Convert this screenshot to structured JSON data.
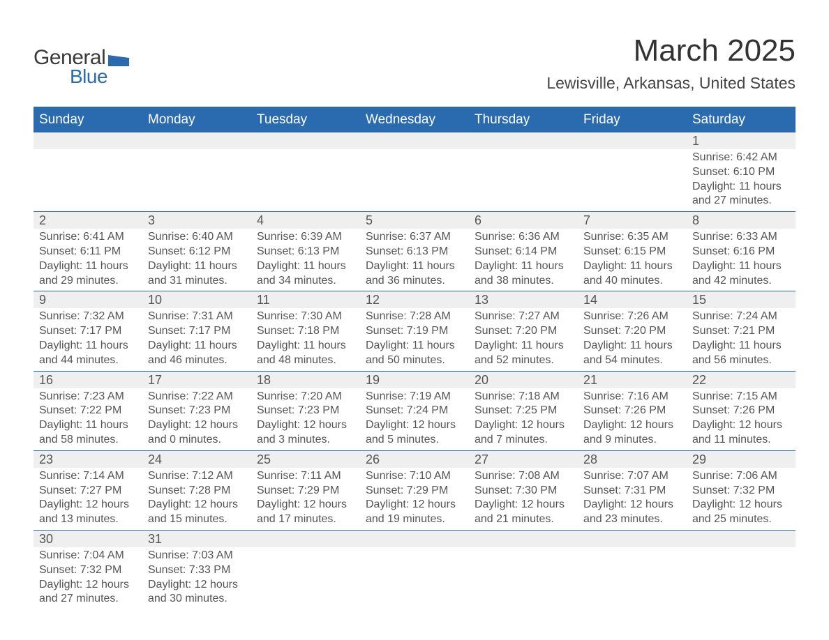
{
  "logo": {
    "text_general": "General",
    "text_blue": "Blue",
    "shape_color": "#2a6bb0"
  },
  "title": "March 2025",
  "location": "Lewisville, Arkansas, United States",
  "colors": {
    "header_bg": "#2a6bb0",
    "header_text": "#ffffff",
    "daynum_bg": "#efefef",
    "body_text": "#555555",
    "border": "#2a6bb0"
  },
  "day_headers": [
    "Sunday",
    "Monday",
    "Tuesday",
    "Wednesday",
    "Thursday",
    "Friday",
    "Saturday"
  ],
  "weeks": [
    [
      null,
      null,
      null,
      null,
      null,
      null,
      {
        "n": "1",
        "sunrise": "Sunrise: 6:42 AM",
        "sunset": "Sunset: 6:10 PM",
        "day1": "Daylight: 11 hours",
        "day2": "and 27 minutes."
      }
    ],
    [
      {
        "n": "2",
        "sunrise": "Sunrise: 6:41 AM",
        "sunset": "Sunset: 6:11 PM",
        "day1": "Daylight: 11 hours",
        "day2": "and 29 minutes."
      },
      {
        "n": "3",
        "sunrise": "Sunrise: 6:40 AM",
        "sunset": "Sunset: 6:12 PM",
        "day1": "Daylight: 11 hours",
        "day2": "and 31 minutes."
      },
      {
        "n": "4",
        "sunrise": "Sunrise: 6:39 AM",
        "sunset": "Sunset: 6:13 PM",
        "day1": "Daylight: 11 hours",
        "day2": "and 34 minutes."
      },
      {
        "n": "5",
        "sunrise": "Sunrise: 6:37 AM",
        "sunset": "Sunset: 6:13 PM",
        "day1": "Daylight: 11 hours",
        "day2": "and 36 minutes."
      },
      {
        "n": "6",
        "sunrise": "Sunrise: 6:36 AM",
        "sunset": "Sunset: 6:14 PM",
        "day1": "Daylight: 11 hours",
        "day2": "and 38 minutes."
      },
      {
        "n": "7",
        "sunrise": "Sunrise: 6:35 AM",
        "sunset": "Sunset: 6:15 PM",
        "day1": "Daylight: 11 hours",
        "day2": "and 40 minutes."
      },
      {
        "n": "8",
        "sunrise": "Sunrise: 6:33 AM",
        "sunset": "Sunset: 6:16 PM",
        "day1": "Daylight: 11 hours",
        "day2": "and 42 minutes."
      }
    ],
    [
      {
        "n": "9",
        "sunrise": "Sunrise: 7:32 AM",
        "sunset": "Sunset: 7:17 PM",
        "day1": "Daylight: 11 hours",
        "day2": "and 44 minutes."
      },
      {
        "n": "10",
        "sunrise": "Sunrise: 7:31 AM",
        "sunset": "Sunset: 7:17 PM",
        "day1": "Daylight: 11 hours",
        "day2": "and 46 minutes."
      },
      {
        "n": "11",
        "sunrise": "Sunrise: 7:30 AM",
        "sunset": "Sunset: 7:18 PM",
        "day1": "Daylight: 11 hours",
        "day2": "and 48 minutes."
      },
      {
        "n": "12",
        "sunrise": "Sunrise: 7:28 AM",
        "sunset": "Sunset: 7:19 PM",
        "day1": "Daylight: 11 hours",
        "day2": "and 50 minutes."
      },
      {
        "n": "13",
        "sunrise": "Sunrise: 7:27 AM",
        "sunset": "Sunset: 7:20 PM",
        "day1": "Daylight: 11 hours",
        "day2": "and 52 minutes."
      },
      {
        "n": "14",
        "sunrise": "Sunrise: 7:26 AM",
        "sunset": "Sunset: 7:20 PM",
        "day1": "Daylight: 11 hours",
        "day2": "and 54 minutes."
      },
      {
        "n": "15",
        "sunrise": "Sunrise: 7:24 AM",
        "sunset": "Sunset: 7:21 PM",
        "day1": "Daylight: 11 hours",
        "day2": "and 56 minutes."
      }
    ],
    [
      {
        "n": "16",
        "sunrise": "Sunrise: 7:23 AM",
        "sunset": "Sunset: 7:22 PM",
        "day1": "Daylight: 11 hours",
        "day2": "and 58 minutes."
      },
      {
        "n": "17",
        "sunrise": "Sunrise: 7:22 AM",
        "sunset": "Sunset: 7:23 PM",
        "day1": "Daylight: 12 hours",
        "day2": "and 0 minutes."
      },
      {
        "n": "18",
        "sunrise": "Sunrise: 7:20 AM",
        "sunset": "Sunset: 7:23 PM",
        "day1": "Daylight: 12 hours",
        "day2": "and 3 minutes."
      },
      {
        "n": "19",
        "sunrise": "Sunrise: 7:19 AM",
        "sunset": "Sunset: 7:24 PM",
        "day1": "Daylight: 12 hours",
        "day2": "and 5 minutes."
      },
      {
        "n": "20",
        "sunrise": "Sunrise: 7:18 AM",
        "sunset": "Sunset: 7:25 PM",
        "day1": "Daylight: 12 hours",
        "day2": "and 7 minutes."
      },
      {
        "n": "21",
        "sunrise": "Sunrise: 7:16 AM",
        "sunset": "Sunset: 7:26 PM",
        "day1": "Daylight: 12 hours",
        "day2": "and 9 minutes."
      },
      {
        "n": "22",
        "sunrise": "Sunrise: 7:15 AM",
        "sunset": "Sunset: 7:26 PM",
        "day1": "Daylight: 12 hours",
        "day2": "and 11 minutes."
      }
    ],
    [
      {
        "n": "23",
        "sunrise": "Sunrise: 7:14 AM",
        "sunset": "Sunset: 7:27 PM",
        "day1": "Daylight: 12 hours",
        "day2": "and 13 minutes."
      },
      {
        "n": "24",
        "sunrise": "Sunrise: 7:12 AM",
        "sunset": "Sunset: 7:28 PM",
        "day1": "Daylight: 12 hours",
        "day2": "and 15 minutes."
      },
      {
        "n": "25",
        "sunrise": "Sunrise: 7:11 AM",
        "sunset": "Sunset: 7:29 PM",
        "day1": "Daylight: 12 hours",
        "day2": "and 17 minutes."
      },
      {
        "n": "26",
        "sunrise": "Sunrise: 7:10 AM",
        "sunset": "Sunset: 7:29 PM",
        "day1": "Daylight: 12 hours",
        "day2": "and 19 minutes."
      },
      {
        "n": "27",
        "sunrise": "Sunrise: 7:08 AM",
        "sunset": "Sunset: 7:30 PM",
        "day1": "Daylight: 12 hours",
        "day2": "and 21 minutes."
      },
      {
        "n": "28",
        "sunrise": "Sunrise: 7:07 AM",
        "sunset": "Sunset: 7:31 PM",
        "day1": "Daylight: 12 hours",
        "day2": "and 23 minutes."
      },
      {
        "n": "29",
        "sunrise": "Sunrise: 7:06 AM",
        "sunset": "Sunset: 7:32 PM",
        "day1": "Daylight: 12 hours",
        "day2": "and 25 minutes."
      }
    ],
    [
      {
        "n": "30",
        "sunrise": "Sunrise: 7:04 AM",
        "sunset": "Sunset: 7:32 PM",
        "day1": "Daylight: 12 hours",
        "day2": "and 27 minutes."
      },
      {
        "n": "31",
        "sunrise": "Sunrise: 7:03 AM",
        "sunset": "Sunset: 7:33 PM",
        "day1": "Daylight: 12 hours",
        "day2": "and 30 minutes."
      },
      null,
      null,
      null,
      null,
      null
    ]
  ]
}
